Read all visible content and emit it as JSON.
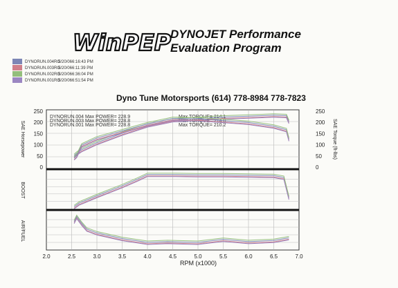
{
  "header": {
    "logo_text": "WinPEP",
    "title_line1": "DYNOJET Performance",
    "title_line2": "Evaluation Program",
    "shop_line": "Dyno Tune Motorsports  (614) 778-8984  778-7823"
  },
  "runs": [
    {
      "name": "DYNORUN.004RO",
      "date": "5/20/06",
      "time": "6:16:43 PM",
      "color": "#7d86b5"
    },
    {
      "name": "DYNORUN.003RO",
      "date": "5/20/06",
      "time": "6:11:39 PM",
      "color": "#d07f8a"
    },
    {
      "name": "DYNORUN.002RO",
      "date": "5/20/06",
      "time": "6:36:04 PM",
      "color": "#93be7c"
    },
    {
      "name": "DYNORUN.001RO",
      "date": "5/20/06",
      "time": "6:51:54 PM",
      "color": "#9b86c2"
    }
  ],
  "chart_data": {
    "type": "line",
    "xlabel": "RPM (x1000)",
    "xlim": [
      2.0,
      7.0
    ],
    "x_ticks": [
      "2.0",
      "2.5",
      "3.0",
      "3.5",
      "4.0",
      "4.5",
      "5.0",
      "5.5",
      "6.0",
      "6.5",
      "7.0"
    ],
    "panels": [
      {
        "id": "power",
        "ylabel_left": "SAE Horsepower",
        "ylabel_right": "SAE Torque (ft-lbs)",
        "ylim": [
          0,
          250
        ],
        "left_ticks": [
          "250",
          "200",
          "150",
          "100",
          "50",
          "0"
        ],
        "right_ticks": [
          "250",
          "200",
          "150",
          "100",
          "50",
          "0"
        ],
        "annotations": [
          "DYNORUN.004  Max POWER= 228.9",
          "DYNORUN.003  Max POWER= 228.8",
          "DYNORUN.001  Max POWER= 228.8",
          "Max TORQUE= 214.1",
          "Max TORQUE= 214.0",
          "Max TORQUE= 210.2"
        ],
        "series": [
          {
            "x": [
              2.55,
              2.6,
              2.7,
              3.0,
              3.5,
              4.0,
              4.5,
              5.0,
              5.5,
              6.0,
              6.5,
              6.75,
              6.8
            ],
            "y": [
              55,
              65,
              80,
              110,
              150,
              185,
              207,
              213,
              219,
              223,
              227,
              225,
              200
            ]
          },
          {
            "x": [
              2.55,
              2.6,
              2.7,
              3.0,
              3.5,
              4.0,
              4.5,
              5.0,
              5.5,
              6.0,
              6.5,
              6.75,
              6.8
            ],
            "y": [
              45,
              55,
              100,
              130,
              160,
              190,
              213,
              211,
              204,
              196,
              180,
              165,
              125
            ]
          }
        ]
      },
      {
        "id": "boost",
        "ylabel_left": "BOOST",
        "ylim": [
          0,
          1
        ],
        "series": [
          {
            "x": [
              2.55,
              2.65,
              3.0,
              3.5,
              3.8,
              4.0,
              4.5,
              5.0,
              5.5,
              6.0,
              6.5,
              6.7,
              6.8
            ],
            "y": [
              0.05,
              0.15,
              0.35,
              0.62,
              0.8,
              0.93,
              0.93,
              0.92,
              0.92,
              0.91,
              0.9,
              0.85,
              0.3
            ]
          }
        ]
      },
      {
        "id": "afr",
        "ylabel_left": "AIR/FUEL",
        "ylim": [
          0,
          1
        ],
        "series": [
          {
            "x": [
              2.55,
              2.6,
              2.7,
              2.8,
              3.0,
              3.5,
              4.0,
              4.4,
              5.0,
              5.5,
              6.0,
              6.5,
              6.8
            ],
            "y": [
              0.75,
              0.88,
              0.7,
              0.55,
              0.45,
              0.3,
              0.2,
              0.22,
              0.2,
              0.28,
              0.22,
              0.25,
              0.32
            ]
          }
        ]
      }
    ]
  }
}
